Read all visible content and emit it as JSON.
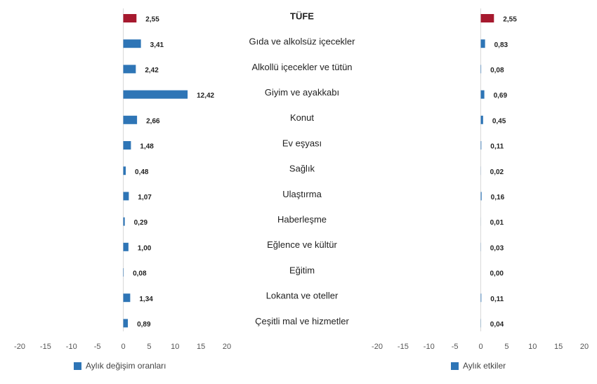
{
  "chart_data": [
    {
      "type": "bar",
      "orientation": "horizontal",
      "categories": [
        "TÜFE",
        "Gıda ve alkolsüz içecekler",
        "Alkollü içecekler ve tütün",
        "Giyim ve ayakkabı",
        "Konut",
        "Ev eşyası",
        "Sağlık",
        "Ulaştırma",
        "Haberleşme",
        "Eğlence ve kültür",
        "Eğitim",
        "Lokanta ve oteller",
        "Çeşitli mal ve hizmetler"
      ],
      "series": [
        {
          "name": "Aylık değişim oranları",
          "color": "#2e75b6",
          "bar_colors": [
            "#a6192e",
            "#2e75b6",
            "#2e75b6",
            "#2e75b6",
            "#2e75b6",
            "#2e75b6",
            "#2e75b6",
            "#2e75b6",
            "#2e75b6",
            "#2e75b6",
            "#2e75b6",
            "#2e75b6",
            "#2e75b6"
          ],
          "values": [
            2.55,
            3.41,
            2.42,
            12.42,
            2.66,
            1.48,
            0.48,
            1.07,
            0.29,
            1.0,
            0.08,
            1.34,
            0.89
          ],
          "value_labels": [
            "2,55",
            "3,41",
            "2,42",
            "12,42",
            "2,66",
            "1,48",
            "0,48",
            "1,07",
            "0,29",
            "1,00",
            "0,08",
            "1,34",
            "0,89"
          ]
        }
      ],
      "xlim": [
        -20,
        20
      ],
      "xticks": [
        -20,
        -15,
        -10,
        -5,
        0,
        5,
        10,
        15,
        20
      ]
    },
    {
      "type": "bar",
      "orientation": "horizontal",
      "series": [
        {
          "name": "Aylık etkiler",
          "color": "#2e75b6",
          "bar_colors": [
            "#a6192e",
            "#2e75b6",
            "#2e75b6",
            "#2e75b6",
            "#2e75b6",
            "#2e75b6",
            "#2e75b6",
            "#2e75b6",
            "#2e75b6",
            "#2e75b6",
            "#2e75b6",
            "#2e75b6",
            "#2e75b6"
          ],
          "values": [
            2.55,
            0.83,
            0.08,
            0.69,
            0.45,
            0.11,
            0.02,
            0.16,
            0.01,
            0.03,
            0.0,
            0.11,
            0.04
          ],
          "value_labels": [
            "2,55",
            "0,83",
            "0,08",
            "0,69",
            "0,45",
            "0,11",
            "0,02",
            "0,16",
            "0,01",
            "0,03",
            "0,00",
            "0,11",
            "0,04"
          ]
        }
      ],
      "xlim": [
        -20,
        20
      ],
      "xticks": [
        -20,
        -15,
        -10,
        -5,
        0,
        5,
        10,
        15,
        20
      ]
    }
  ]
}
